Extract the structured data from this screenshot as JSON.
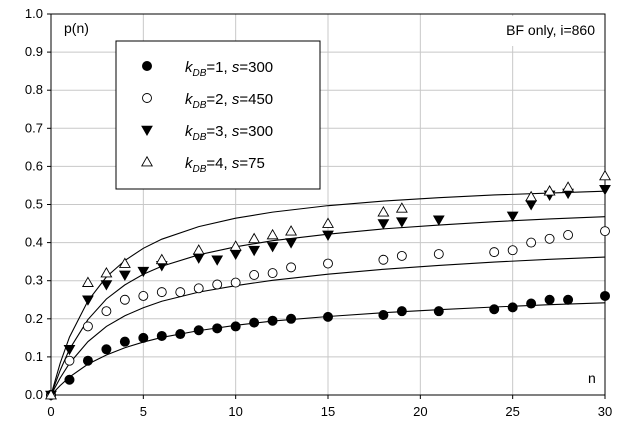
{
  "chart_data": {
    "type": "scatter",
    "title": "",
    "annotation": "BF only, i=860",
    "xlabel": "n",
    "ylabel": "p(n)",
    "xlim": [
      0,
      30
    ],
    "ylim": [
      0,
      1
    ],
    "xticks": [
      "0",
      "5",
      "10",
      "15",
      "20",
      "25",
      "30"
    ],
    "yticks": [
      "0.0",
      "0.1",
      "0.2",
      "0.3",
      "0.4",
      "0.5",
      "0.6",
      "0.7",
      "0.8",
      "0.9",
      "1.0"
    ],
    "grid": true,
    "legend_position": "top-left",
    "series": [
      {
        "name": "kDB=1, s=300",
        "legend": {
          "k": "k",
          "sub": "DB",
          "rest": "=1, ",
          "s": "s",
          "val": "=300"
        },
        "marker": "filled-circle",
        "x": [
          0,
          1,
          2,
          3,
          4,
          5,
          6,
          7,
          8,
          9,
          10,
          11,
          12,
          13,
          15,
          18,
          19,
          21,
          24,
          25,
          26,
          27,
          28,
          30
        ],
        "y": [
          0.0,
          0.04,
          0.09,
          0.12,
          0.14,
          0.15,
          0.155,
          0.16,
          0.17,
          0.175,
          0.18,
          0.19,
          0.195,
          0.2,
          0.205,
          0.21,
          0.22,
          0.22,
          0.225,
          0.23,
          0.24,
          0.25,
          0.25,
          0.26
        ],
        "fit": [
          [
            0,
            0
          ],
          [
            0.5,
            0.025
          ],
          [
            1,
            0.047
          ],
          [
            2,
            0.081
          ],
          [
            3,
            0.105
          ],
          [
            4,
            0.124
          ],
          [
            5,
            0.139
          ],
          [
            6,
            0.151
          ],
          [
            8,
            0.169
          ],
          [
            10,
            0.183
          ],
          [
            12,
            0.194
          ],
          [
            15,
            0.206
          ],
          [
            18,
            0.216
          ],
          [
            21,
            0.224
          ],
          [
            24,
            0.231
          ],
          [
            27,
            0.237
          ],
          [
            30,
            0.242
          ]
        ]
      },
      {
        "name": "kDB=2, s=450",
        "legend": {
          "k": "k",
          "sub": "DB",
          "rest": "=2, ",
          "s": "s",
          "val": "=450"
        },
        "marker": "open-circle",
        "x": [
          0,
          1,
          2,
          3,
          4,
          5,
          6,
          7,
          8,
          9,
          10,
          11,
          12,
          13,
          15,
          18,
          19,
          21,
          24,
          25,
          26,
          27,
          28,
          30
        ],
        "y": [
          0.0,
          0.09,
          0.18,
          0.22,
          0.25,
          0.26,
          0.27,
          0.27,
          0.28,
          0.29,
          0.295,
          0.315,
          0.32,
          0.335,
          0.345,
          0.355,
          0.365,
          0.37,
          0.375,
          0.38,
          0.4,
          0.41,
          0.42,
          0.43
        ],
        "fit": [
          [
            0,
            0
          ],
          [
            0.5,
            0.045
          ],
          [
            1,
            0.083
          ],
          [
            2,
            0.14
          ],
          [
            3,
            0.18
          ],
          [
            4,
            0.208
          ],
          [
            5,
            0.229
          ],
          [
            6,
            0.246
          ],
          [
            8,
            0.27
          ],
          [
            10,
            0.287
          ],
          [
            12,
            0.301
          ],
          [
            15,
            0.317
          ],
          [
            18,
            0.33
          ],
          [
            21,
            0.34
          ],
          [
            24,
            0.349
          ],
          [
            27,
            0.356
          ],
          [
            30,
            0.362
          ]
        ]
      },
      {
        "name": "kDB=3, s=300",
        "legend": {
          "k": "k",
          "sub": "DB",
          "rest": "=3, ",
          "s": "s",
          "val": "=300"
        },
        "marker": "filled-triangle-down",
        "x": [
          0,
          1,
          2,
          3,
          4,
          5,
          6,
          8,
          9,
          10,
          11,
          12,
          13,
          15,
          18,
          19,
          21,
          25,
          26,
          27,
          28,
          30
        ],
        "y": [
          0.0,
          0.12,
          0.25,
          0.29,
          0.315,
          0.325,
          0.34,
          0.36,
          0.355,
          0.37,
          0.38,
          0.39,
          0.4,
          0.42,
          0.45,
          0.455,
          0.46,
          0.47,
          0.5,
          0.525,
          0.53,
          0.54
        ],
        "fit": [
          [
            0,
            0
          ],
          [
            0.5,
            0.065
          ],
          [
            1,
            0.12
          ],
          [
            2,
            0.198
          ],
          [
            3,
            0.252
          ],
          [
            4,
            0.289
          ],
          [
            5,
            0.317
          ],
          [
            6,
            0.338
          ],
          [
            8,
            0.368
          ],
          [
            10,
            0.389
          ],
          [
            12,
            0.405
          ],
          [
            15,
            0.422
          ],
          [
            18,
            0.436
          ],
          [
            21,
            0.446
          ],
          [
            24,
            0.455
          ],
          [
            27,
            0.462
          ],
          [
            30,
            0.468
          ]
        ]
      },
      {
        "name": "kDB=4, s=75",
        "legend": {
          "k": "k",
          "sub": "DB",
          "rest": "=4, ",
          "s": "s",
          "val": "=75"
        },
        "marker": "open-triangle-up",
        "x": [
          0,
          2,
          3,
          4,
          6,
          8,
          10,
          11,
          12,
          13,
          15,
          18,
          19,
          26,
          27,
          28,
          30
        ],
        "y": [
          0.0,
          0.295,
          0.32,
          0.345,
          0.355,
          0.38,
          0.39,
          0.41,
          0.42,
          0.43,
          0.45,
          0.48,
          0.49,
          0.52,
          0.535,
          0.545,
          0.575
        ],
        "fit": [
          [
            0,
            0
          ],
          [
            0.5,
            0.084
          ],
          [
            1,
            0.152
          ],
          [
            2,
            0.247
          ],
          [
            3,
            0.31
          ],
          [
            4,
            0.353
          ],
          [
            5,
            0.385
          ],
          [
            6,
            0.409
          ],
          [
            8,
            0.442
          ],
          [
            10,
            0.464
          ],
          [
            12,
            0.48
          ],
          [
            15,
            0.497
          ],
          [
            18,
            0.509
          ],
          [
            21,
            0.518
          ],
          [
            24,
            0.525
          ],
          [
            27,
            0.53
          ],
          [
            30,
            0.535
          ]
        ]
      }
    ]
  }
}
